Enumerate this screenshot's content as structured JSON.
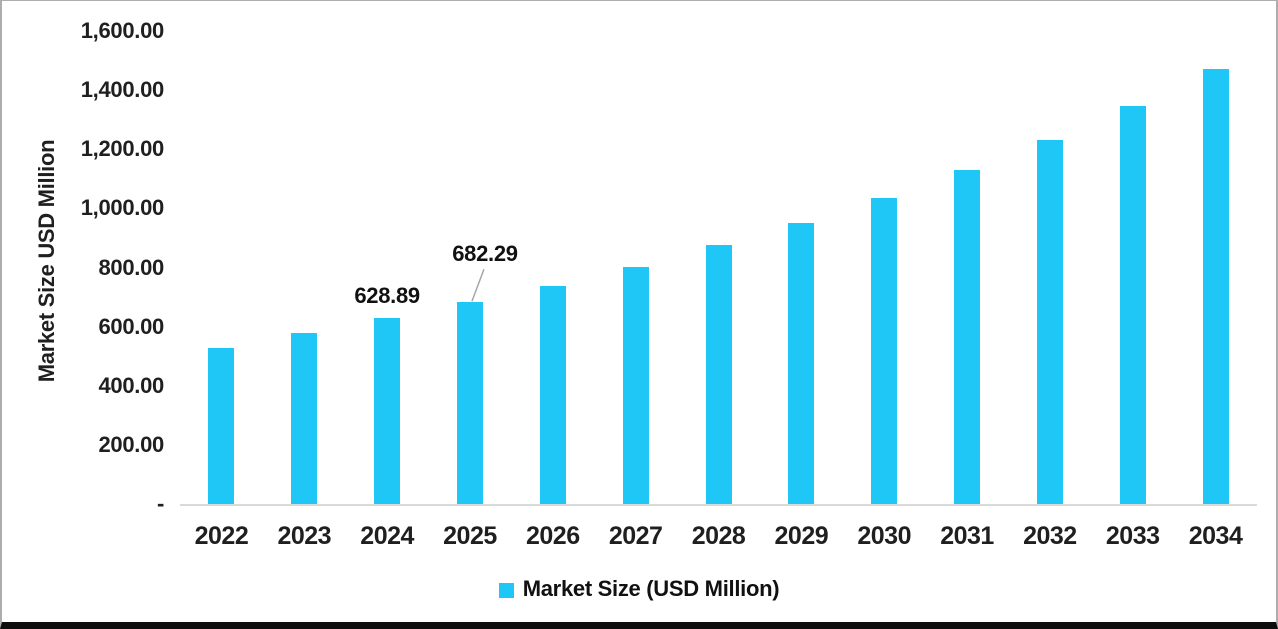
{
  "chart_data": {
    "type": "bar",
    "title": "",
    "xlabel": "",
    "ylabel": "Market Size USD Million",
    "categories": [
      "2022",
      "2023",
      "2024",
      "2025",
      "2026",
      "2027",
      "2028",
      "2029",
      "2030",
      "2031",
      "2032",
      "2033",
      "2034"
    ],
    "series": [
      {
        "name": "Market Size (USD Million)",
        "values": [
          527,
          577,
          628.89,
          682.29,
          739,
          803,
          876,
          951,
          1035,
          1130,
          1231,
          1348,
          1470
        ]
      }
    ],
    "ylim": [
      0,
      1600
    ],
    "yticks": [
      {
        "label": "1,600.00",
        "value": 1600
      },
      {
        "label": "1,400.00",
        "value": 1400
      },
      {
        "label": "1,200.00",
        "value": 1200
      },
      {
        "label": "1,000.00",
        "value": 1000
      },
      {
        "label": "800.00",
        "value": 800
      },
      {
        "label": "600.00",
        "value": 600
      },
      {
        "label": "400.00",
        "value": 400
      },
      {
        "label": "200.00",
        "value": 200
      },
      {
        "label": "-",
        "value": 0
      }
    ],
    "grid": false,
    "bar_color": "#1EC7F6",
    "leader_line_color": "#a6a6a6",
    "data_labels": [
      {
        "category": "2024",
        "text": "628.89",
        "leader": false
      },
      {
        "category": "2025",
        "text": "682.29",
        "leader": true
      }
    ],
    "legend": {
      "position": "bottom",
      "label": "Market Size (USD Million)",
      "swatch_color": "#1EC7F6"
    }
  }
}
